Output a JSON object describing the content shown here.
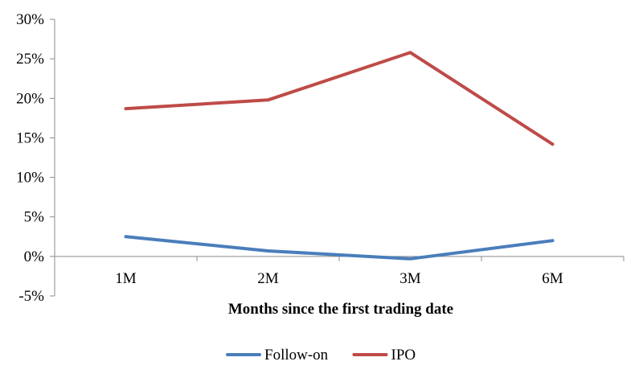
{
  "chart_data": {
    "type": "line",
    "title": "",
    "xlabel": "Months since the first trading date",
    "ylabel": "",
    "categories": [
      "1M",
      "2M",
      "3M",
      "6M"
    ],
    "y_ticks": [
      -5,
      0,
      5,
      10,
      15,
      20,
      25,
      30
    ],
    "y_tick_labels": [
      "-5%",
      "0%",
      "5%",
      "10%",
      "15%",
      "20%",
      "25%",
      "30%"
    ],
    "ylim": [
      -5,
      30
    ],
    "grid": false,
    "legend_position": "bottom",
    "series": [
      {
        "name": "Follow-on",
        "color": "#4a7ebb",
        "values": [
          2.5,
          0.7,
          -0.3,
          2.0
        ]
      },
      {
        "name": "IPO",
        "color": "#be4b48",
        "values": [
          18.7,
          19.8,
          25.8,
          14.2
        ]
      }
    ]
  }
}
